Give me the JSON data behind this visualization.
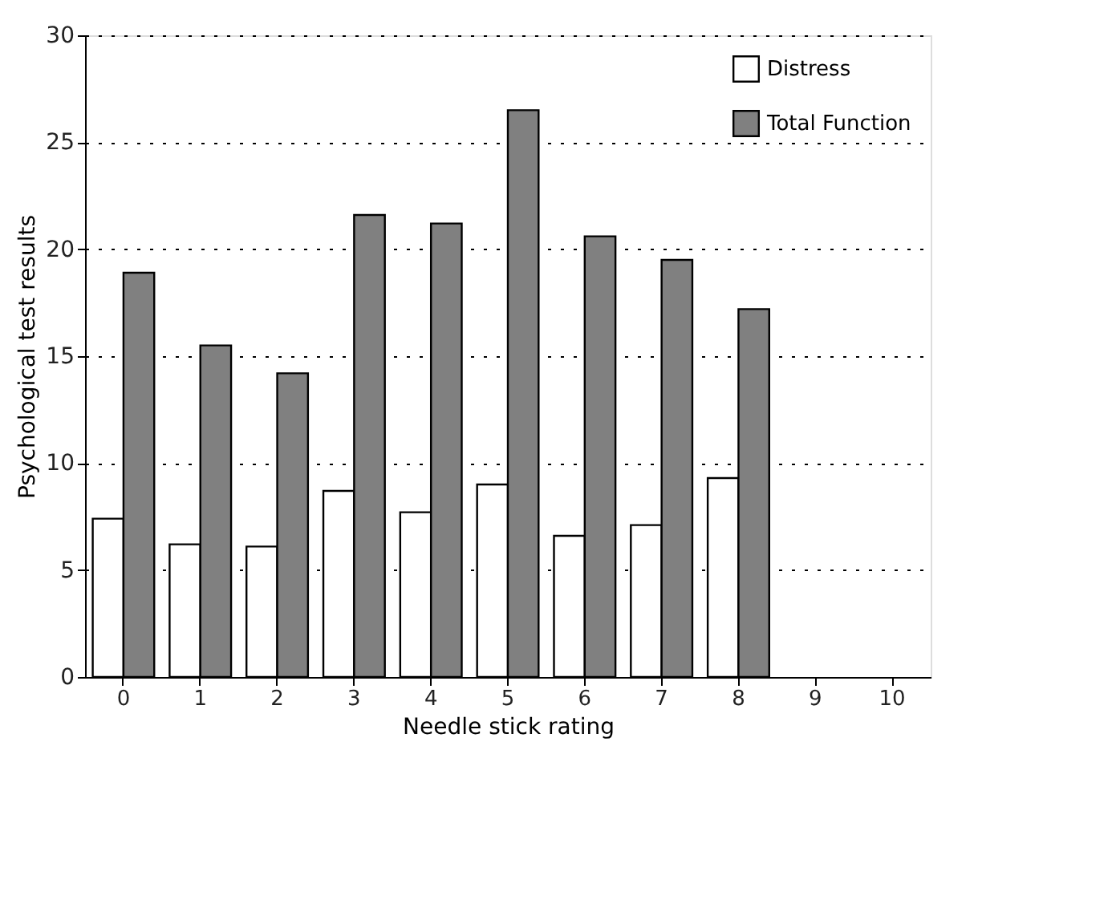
{
  "chart_data": {
    "type": "bar",
    "xlabel": "Needle stick rating",
    "ylabel": "Psychological test results",
    "categories": [
      "0",
      "1",
      "2",
      "3",
      "4",
      "5",
      "6",
      "7",
      "8",
      "9",
      "10"
    ],
    "series": [
      {
        "name": "Distress",
        "color": "#ffffff",
        "values": [
          7.4,
          6.2,
          6.1,
          8.7,
          7.7,
          9.0,
          6.6,
          7.1,
          9.3,
          null,
          null
        ]
      },
      {
        "name": "Total Function",
        "color": "#808080",
        "values": [
          18.9,
          15.5,
          14.2,
          21.6,
          21.2,
          26.5,
          20.6,
          19.5,
          17.2,
          null,
          null
        ]
      }
    ],
    "ylim": [
      0,
      30
    ],
    "yticks": [
      0,
      5,
      10,
      15,
      20,
      25,
      30
    ],
    "grid": "y",
    "legend": "top right"
  }
}
